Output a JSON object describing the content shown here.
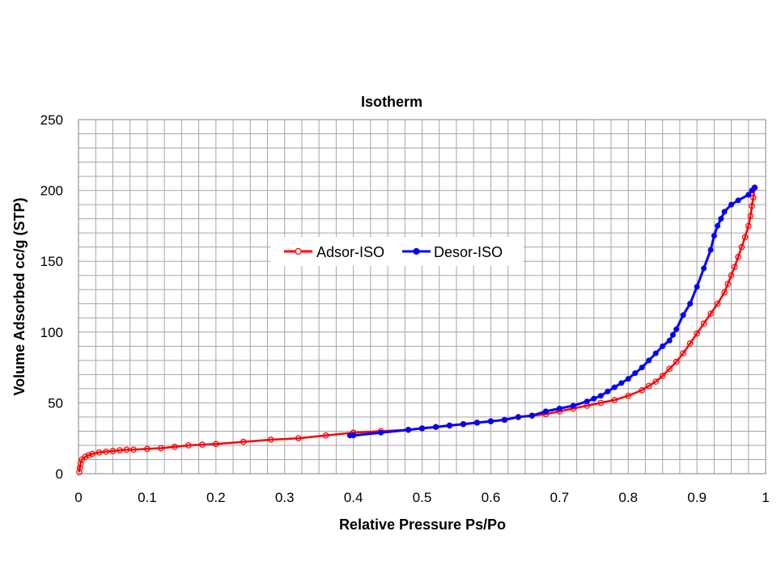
{
  "chart_data": {
    "type": "line",
    "title": "Isotherm",
    "xlabel": "Relative Pressure Ps/Po",
    "ylabel": "Volume Adsorbed cc/g (STP)",
    "xlim": [
      0,
      1
    ],
    "ylim": [
      0,
      250
    ],
    "x_ticks": [
      "0",
      "0.1",
      "0.2",
      "0.3",
      "0.4",
      "0.5",
      "0.6",
      "0.7",
      "0.8",
      "0.9",
      "1"
    ],
    "y_ticks": [
      "0",
      "50",
      "100",
      "150",
      "200",
      "250"
    ],
    "grid": true,
    "legend_position": "center",
    "series": [
      {
        "name": "Adsor-ISO",
        "color": "#ff0000",
        "marker": "open-circle",
        "points": [
          [
            0.001,
            1
          ],
          [
            0.002,
            4
          ],
          [
            0.003,
            7
          ],
          [
            0.005,
            10
          ],
          [
            0.01,
            12
          ],
          [
            0.015,
            13
          ],
          [
            0.02,
            14
          ],
          [
            0.03,
            15
          ],
          [
            0.04,
            15.5
          ],
          [
            0.05,
            16
          ],
          [
            0.06,
            16.5
          ],
          [
            0.07,
            17
          ],
          [
            0.08,
            17
          ],
          [
            0.1,
            17.5
          ],
          [
            0.12,
            18
          ],
          [
            0.14,
            19
          ],
          [
            0.16,
            20
          ],
          [
            0.18,
            20.5
          ],
          [
            0.2,
            21
          ],
          [
            0.24,
            22.5
          ],
          [
            0.28,
            24
          ],
          [
            0.32,
            25
          ],
          [
            0.36,
            27
          ],
          [
            0.4,
            29
          ],
          [
            0.44,
            30
          ],
          [
            0.48,
            31
          ],
          [
            0.5,
            32
          ],
          [
            0.52,
            33
          ],
          [
            0.54,
            34
          ],
          [
            0.56,
            35
          ],
          [
            0.58,
            36
          ],
          [
            0.6,
            37
          ],
          [
            0.62,
            38
          ],
          [
            0.64,
            40
          ],
          [
            0.66,
            41
          ],
          [
            0.68,
            42
          ],
          [
            0.7,
            44
          ],
          [
            0.72,
            46
          ],
          [
            0.74,
            48
          ],
          [
            0.76,
            50
          ],
          [
            0.78,
            52
          ],
          [
            0.8,
            55
          ],
          [
            0.82,
            59
          ],
          [
            0.83,
            62
          ],
          [
            0.84,
            65
          ],
          [
            0.85,
            69
          ],
          [
            0.86,
            74
          ],
          [
            0.87,
            79
          ],
          [
            0.88,
            85
          ],
          [
            0.89,
            92
          ],
          [
            0.9,
            99
          ],
          [
            0.91,
            106
          ],
          [
            0.92,
            113
          ],
          [
            0.93,
            120
          ],
          [
            0.94,
            128
          ],
          [
            0.945,
            134
          ],
          [
            0.95,
            140
          ],
          [
            0.955,
            146
          ],
          [
            0.96,
            153
          ],
          [
            0.965,
            160
          ],
          [
            0.97,
            167
          ],
          [
            0.975,
            175
          ],
          [
            0.978,
            182
          ],
          [
            0.98,
            189
          ],
          [
            0.982,
            195
          ],
          [
            0.984,
            202
          ]
        ]
      },
      {
        "name": "Desor-ISO",
        "color": "#0000ff",
        "marker": "filled-circle",
        "points": [
          [
            0.984,
            202
          ],
          [
            0.98,
            200
          ],
          [
            0.975,
            197
          ],
          [
            0.96,
            193
          ],
          [
            0.95,
            190
          ],
          [
            0.94,
            185
          ],
          [
            0.935,
            180
          ],
          [
            0.93,
            175
          ],
          [
            0.925,
            168
          ],
          [
            0.92,
            158
          ],
          [
            0.91,
            145
          ],
          [
            0.9,
            132
          ],
          [
            0.89,
            120
          ],
          [
            0.88,
            112
          ],
          [
            0.87,
            102
          ],
          [
            0.865,
            98
          ],
          [
            0.86,
            94
          ],
          [
            0.85,
            90
          ],
          [
            0.84,
            85
          ],
          [
            0.83,
            80
          ],
          [
            0.82,
            75
          ],
          [
            0.81,
            71
          ],
          [
            0.8,
            67
          ],
          [
            0.79,
            64
          ],
          [
            0.78,
            61
          ],
          [
            0.77,
            58
          ],
          [
            0.76,
            55
          ],
          [
            0.75,
            53
          ],
          [
            0.74,
            51
          ],
          [
            0.72,
            48
          ],
          [
            0.7,
            46
          ],
          [
            0.68,
            44
          ],
          [
            0.66,
            41
          ],
          [
            0.64,
            40
          ],
          [
            0.62,
            38
          ],
          [
            0.6,
            37
          ],
          [
            0.58,
            36
          ],
          [
            0.56,
            35
          ],
          [
            0.54,
            34
          ],
          [
            0.52,
            33
          ],
          [
            0.5,
            32
          ],
          [
            0.48,
            31
          ],
          [
            0.44,
            29
          ],
          [
            0.4,
            27
          ],
          [
            0.395,
            27
          ]
        ]
      }
    ]
  }
}
